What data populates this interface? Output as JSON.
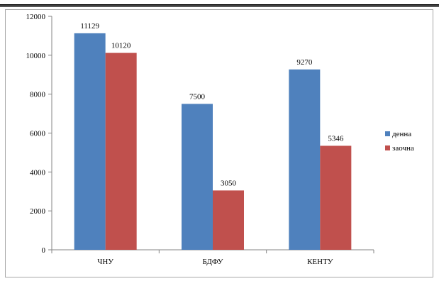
{
  "chart_data": {
    "type": "bar",
    "categories": [
      "ЧНУ",
      "БДФУ",
      "КЕНТУ"
    ],
    "series": [
      {
        "name": "денна",
        "values": [
          11129,
          7500,
          9270
        ],
        "color": "#4f81bd"
      },
      {
        "name": "заочна",
        "values": [
          10120,
          3050,
          5346
        ],
        "color": "#c0504d"
      }
    ],
    "ylim": [
      0,
      12000
    ],
    "yticks": [
      0,
      2000,
      4000,
      6000,
      8000,
      10000,
      12000
    ],
    "xlabel": "",
    "ylabel": "",
    "grid": false,
    "legend": "right",
    "data_labels": true
  }
}
